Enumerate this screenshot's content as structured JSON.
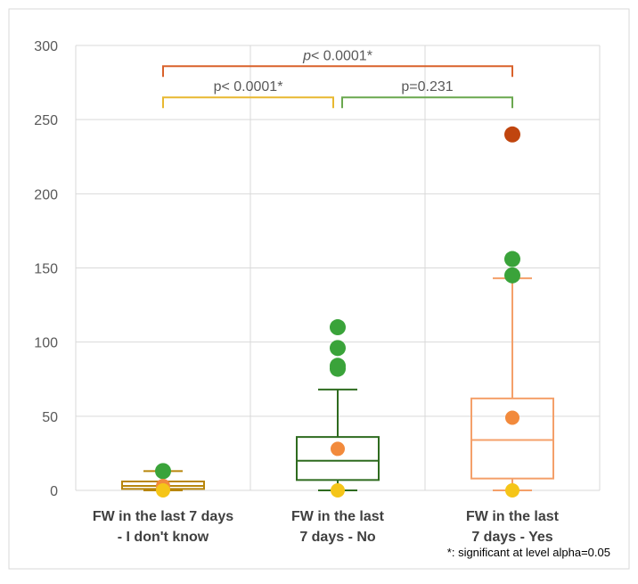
{
  "chart_data": {
    "type": "box",
    "title": "",
    "xlabel": "",
    "ylabel": "",
    "ylim": [
      0,
      300
    ],
    "yticks": [
      0,
      50,
      100,
      150,
      200,
      250,
      300
    ],
    "grid": true,
    "categories": [
      {
        "label_lines": [
          "FW in the last 7 days",
          "- I don't know"
        ],
        "color": "#b8860b",
        "whisker_low": 0,
        "q1": 1,
        "median": 3,
        "q3": 6,
        "whisker_high": 13,
        "mean": 3,
        "min": 0,
        "outliers": [
          13
        ]
      },
      {
        "label_lines": [
          "FW in the last",
          "7 days - No"
        ],
        "color": "#2e6b1f",
        "whisker_low": 0,
        "q1": 7,
        "median": 20,
        "q3": 36,
        "whisker_high": 68,
        "mean": 28,
        "min": 0,
        "outliers": [
          84,
          82,
          96,
          110
        ]
      },
      {
        "label_lines": [
          "FW in the last",
          "7 days - Yes"
        ],
        "color": "#f4a06a",
        "whisker_low": 0,
        "q1": 8,
        "median": 34,
        "q3": 62,
        "whisker_high": 143,
        "mean": 49,
        "min": 0,
        "outliers": [
          145,
          156
        ],
        "extreme_outliers": [
          240
        ]
      }
    ],
    "comparisons": [
      {
        "from": 0,
        "to": 2,
        "level": 286,
        "label": "p< 0.0001*",
        "label_italic_prefix": "p",
        "color": "#d9622b"
      },
      {
        "from": 0,
        "to": 1,
        "level": 265,
        "label": "p< 0.0001*",
        "color": "#e8b830"
      },
      {
        "from": 1,
        "to": 2,
        "level": 265,
        "label": "p=0.231",
        "color": "#6aa84f"
      }
    ],
    "footnote": "*: significant at level alpha=0.05",
    "colors": {
      "mean": "#f28a3c",
      "min": "#f5c518",
      "outlier": "#3aa33a",
      "extreme_outlier": "#c0450e",
      "grid": "#d9d9d9",
      "axis_text": "#595959"
    }
  }
}
